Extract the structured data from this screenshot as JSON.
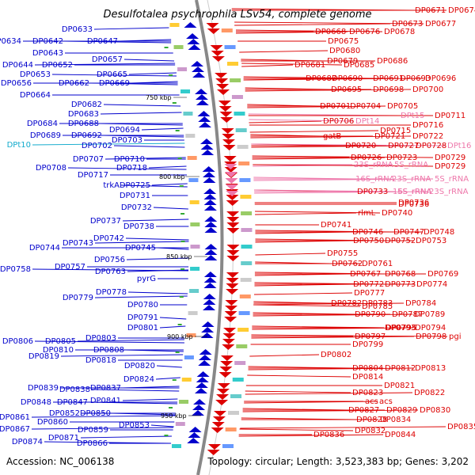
{
  "title": "Desulfotalea psychrophila LSv54, complete genome",
  "accession": "Accession: NC_006138",
  "topology": "Topology: circular; Length: 3,523,383 bp; Genes: 3,202",
  "colors": {
    "minus_strand": "#0000cc",
    "plus_strand": "#dd0000",
    "trna": "#11aacc",
    "rrna": "#ee77aa",
    "backbone": "#888888"
  },
  "scale_labels": [
    "750 kbp",
    "800 kbp",
    "850 kbp",
    "900 kbp",
    "950 kbp"
  ],
  "left_labels": [
    {
      "text": "DP0633",
      "kind": "gene"
    },
    {
      "text": "DP0634",
      "kind": "gene"
    },
    {
      "text": "DP0642",
      "kind": "gene"
    },
    {
      "text": "DP0647",
      "kind": "gene"
    },
    {
      "text": "DP0643",
      "kind": "gene"
    },
    {
      "text": "DP0657",
      "kind": "gene"
    },
    {
      "text": "DP0644",
      "kind": "gene"
    },
    {
      "text": "DP0652",
      "kind": "gene"
    },
    {
      "text": "DP0653",
      "kind": "gene"
    },
    {
      "text": "DP0665",
      "kind": "gene"
    },
    {
      "text": "DP0656",
      "kind": "gene"
    },
    {
      "text": "DP0662",
      "kind": "gene"
    },
    {
      "text": "DP0669",
      "kind": "gene"
    },
    {
      "text": "DP0664",
      "kind": "gene"
    },
    {
      "text": "DP0682",
      "kind": "gene"
    },
    {
      "text": "DP0683",
      "kind": "gene"
    },
    {
      "text": "DP0684",
      "kind": "gene"
    },
    {
      "text": "DP0688",
      "kind": "gene"
    },
    {
      "text": "DP0694",
      "kind": "gene"
    },
    {
      "text": "DP0689",
      "kind": "gene"
    },
    {
      "text": "DP0692",
      "kind": "gene"
    },
    {
      "text": "DPt10",
      "kind": "trna"
    },
    {
      "text": "DP0703",
      "kind": "gene"
    },
    {
      "text": "DP0702",
      "kind": "gene"
    },
    {
      "text": "DP0707",
      "kind": "gene"
    },
    {
      "text": "DP0710",
      "kind": "gene"
    },
    {
      "text": "DP0708",
      "kind": "gene"
    },
    {
      "text": "DP0718",
      "kind": "gene"
    },
    {
      "text": "DP0717",
      "kind": "gene"
    },
    {
      "text": "trkA",
      "kind": "gene"
    },
    {
      "text": "DP0725",
      "kind": "gene"
    },
    {
      "text": "DP0731",
      "kind": "gene"
    },
    {
      "text": "DP0732",
      "kind": "gene"
    },
    {
      "text": "DP0737",
      "kind": "gene"
    },
    {
      "text": "DP0738",
      "kind": "gene"
    },
    {
      "text": "DP0742",
      "kind": "gene"
    },
    {
      "text": "DP0743",
      "kind": "gene"
    },
    {
      "text": "DP0744",
      "kind": "gene"
    },
    {
      "text": "DP0745",
      "kind": "gene"
    },
    {
      "text": "DP0756",
      "kind": "gene"
    },
    {
      "text": "DP0757",
      "kind": "gene"
    },
    {
      "text": "DP0758",
      "kind": "gene"
    },
    {
      "text": "DP0763",
      "kind": "gene"
    },
    {
      "text": "pyrG",
      "kind": "gene"
    },
    {
      "text": "DP0778",
      "kind": "gene"
    },
    {
      "text": "DP0779",
      "kind": "gene"
    },
    {
      "text": "DP0780",
      "kind": "gene"
    },
    {
      "text": "DP0791",
      "kind": "gene"
    },
    {
      "text": "DP0801",
      "kind": "gene"
    },
    {
      "text": "DP0803",
      "kind": "gene"
    },
    {
      "text": "DP0806",
      "kind": "gene"
    },
    {
      "text": "DP0805",
      "kind": "gene"
    },
    {
      "text": "DP0810",
      "kind": "gene"
    },
    {
      "text": "DP0808",
      "kind": "gene"
    },
    {
      "text": "DP0819",
      "kind": "gene"
    },
    {
      "text": "DP0818",
      "kind": "gene"
    },
    {
      "text": "DP0820",
      "kind": "gene"
    },
    {
      "text": "DP0824",
      "kind": "gene"
    },
    {
      "text": "DP0839",
      "kind": "gene"
    },
    {
      "text": "DP0838",
      "kind": "gene"
    },
    {
      "text": "DP0837",
      "kind": "gene"
    },
    {
      "text": "DP0848",
      "kind": "gene"
    },
    {
      "text": "DP0847",
      "kind": "gene"
    },
    {
      "text": "DP0841",
      "kind": "gene"
    },
    {
      "text": "DP0852",
      "kind": "gene"
    },
    {
      "text": "DP0850",
      "kind": "gene"
    },
    {
      "text": "DP0861",
      "kind": "gene"
    },
    {
      "text": "DP0860",
      "kind": "gene"
    },
    {
      "text": "DP0853",
      "kind": "gene"
    },
    {
      "text": "DP0867",
      "kind": "gene"
    },
    {
      "text": "DP0859",
      "kind": "gene"
    },
    {
      "text": "DP0874",
      "kind": "gene"
    },
    {
      "text": "DP0871",
      "kind": "gene"
    },
    {
      "text": "DP0866",
      "kind": "gene"
    }
  ],
  "right_labels": [
    {
      "text": "DP0671",
      "kind": "gene"
    },
    {
      "text": "DP0674",
      "kind": "gene"
    },
    {
      "text": "DP0673",
      "kind": "gene"
    },
    {
      "text": "DP0677",
      "kind": "gene"
    },
    {
      "text": "DP0668",
      "kind": "gene"
    },
    {
      "text": "DP0676",
      "kind": "gene"
    },
    {
      "text": "DP0678",
      "kind": "gene"
    },
    {
      "text": "DP0675",
      "kind": "gene"
    },
    {
      "text": "DP0680",
      "kind": "gene"
    },
    {
      "text": "DP0679",
      "kind": "gene"
    },
    {
      "text": "DP0686",
      "kind": "gene"
    },
    {
      "text": "DP0681",
      "kind": "gene"
    },
    {
      "text": "DP0685",
      "kind": "gene"
    },
    {
      "text": "DP0687",
      "kind": "gene"
    },
    {
      "text": "DP0690",
      "kind": "gene"
    },
    {
      "text": "DP0691",
      "kind": "gene"
    },
    {
      "text": "DP0693",
      "kind": "gene"
    },
    {
      "text": "DP0696",
      "kind": "gene"
    },
    {
      "text": "DP0695",
      "kind": "gene"
    },
    {
      "text": "DP0698",
      "kind": "gene"
    },
    {
      "text": "DP0700",
      "kind": "gene"
    },
    {
      "text": "DP0701",
      "kind": "gene"
    },
    {
      "text": "DP0704",
      "kind": "gene"
    },
    {
      "text": "DP0705",
      "kind": "gene"
    },
    {
      "text": "DPt15",
      "kind": "rrna"
    },
    {
      "text": "DP0711",
      "kind": "gene"
    },
    {
      "text": "DP0706",
      "kind": "gene"
    },
    {
      "text": "DPt14",
      "kind": "rrna"
    },
    {
      "text": "DP0716",
      "kind": "gene"
    },
    {
      "text": "DP0715",
      "kind": "gene"
    },
    {
      "text": "gatB",
      "kind": "gene"
    },
    {
      "text": "DP0721",
      "kind": "gene"
    },
    {
      "text": "DP0722",
      "kind": "gene"
    },
    {
      "text": "DP0720",
      "kind": "gene"
    },
    {
      "text": "DP0727",
      "kind": "gene"
    },
    {
      "text": "DP0728",
      "kind": "gene"
    },
    {
      "text": "DPt16",
      "kind": "rrna"
    },
    {
      "text": "DP0726",
      "kind": "gene"
    },
    {
      "text": "DP0723",
      "kind": "gene"
    },
    {
      "text": "DP0729",
      "kind": "gene"
    },
    {
      "text": "23S_rRNA",
      "kind": "rrna"
    },
    {
      "text": "5S_rRNA",
      "kind": "rrna"
    },
    {
      "text": "16S_rRNA",
      "kind": "rrna"
    },
    {
      "text": "23S_rRNA",
      "kind": "rrna"
    },
    {
      "text": "5S_rRNA",
      "kind": "rrna"
    },
    {
      "text": "DP0733",
      "kind": "gene"
    },
    {
      "text": "16S_rRNA",
      "kind": "rrna"
    },
    {
      "text": "23S_rRNA",
      "kind": "rrna"
    },
    {
      "text": "5S_rRNA",
      "kind": "rrna"
    },
    {
      "text": "DP0736",
      "kind": "gene"
    },
    {
      "text": "rlmL",
      "kind": "gene"
    },
    {
      "text": "DP0740",
      "kind": "gene"
    },
    {
      "text": "DP0741",
      "kind": "gene"
    },
    {
      "text": "DP0746",
      "kind": "gene"
    },
    {
      "text": "DP0747",
      "kind": "gene"
    },
    {
      "text": "DP0748",
      "kind": "gene"
    },
    {
      "text": "DP0750",
      "kind": "gene"
    },
    {
      "text": "DP0752",
      "kind": "gene"
    },
    {
      "text": "DP0753",
      "kind": "gene"
    },
    {
      "text": "DP0755",
      "kind": "gene"
    },
    {
      "text": "DP0762",
      "kind": "gene"
    },
    {
      "text": "DP0761",
      "kind": "gene"
    },
    {
      "text": "DP0767",
      "kind": "gene"
    },
    {
      "text": "DP0768",
      "kind": "gene"
    },
    {
      "text": "DP0769",
      "kind": "gene"
    },
    {
      "text": "DP0772",
      "kind": "gene"
    },
    {
      "text": "DP0773",
      "kind": "gene"
    },
    {
      "text": "DP0774",
      "kind": "gene"
    },
    {
      "text": "DP0777",
      "kind": "gene"
    },
    {
      "text": "DP0782",
      "kind": "gene"
    },
    {
      "text": "DP0783",
      "kind": "gene"
    },
    {
      "text": "DP0784",
      "kind": "gene"
    },
    {
      "text": "DP0785",
      "kind": "gene"
    },
    {
      "text": "DP0787",
      "kind": "gene"
    },
    {
      "text": "DP0789",
      "kind": "gene"
    },
    {
      "text": "DP0790",
      "kind": "gene"
    },
    {
      "text": "DP0793",
      "kind": "gene"
    },
    {
      "text": "DP0794",
      "kind": "gene"
    },
    {
      "text": "DP0795",
      "kind": "gene"
    },
    {
      "text": "DP0797",
      "kind": "gene"
    },
    {
      "text": "DP0798",
      "kind": "gene"
    },
    {
      "text": "pgi",
      "kind": "gene"
    },
    {
      "text": "DP0799",
      "kind": "gene"
    },
    {
      "text": "DP0802",
      "kind": "gene"
    },
    {
      "text": "DP0804",
      "kind": "gene"
    },
    {
      "text": "DP0812",
      "kind": "gene"
    },
    {
      "text": "DP0813",
      "kind": "gene"
    },
    {
      "text": "DP0814",
      "kind": "gene"
    },
    {
      "text": "DP0821",
      "kind": "gene"
    },
    {
      "text": "DP0822",
      "kind": "gene"
    },
    {
      "text": "DP0823",
      "kind": "gene"
    },
    {
      "text": "acs",
      "kind": "gene"
    },
    {
      "text": "acs",
      "kind": "gene"
    },
    {
      "text": "DP0827",
      "kind": "gene"
    },
    {
      "text": "DP0829",
      "kind": "gene"
    },
    {
      "text": "DP0830",
      "kind": "gene"
    },
    {
      "text": "DP0828",
      "kind": "gene"
    },
    {
      "text": "DP0834",
      "kind": "gene"
    },
    {
      "text": "DP0835",
      "kind": "gene"
    },
    {
      "text": "DP0832",
      "kind": "gene"
    },
    {
      "text": "DP0836",
      "kind": "gene"
    },
    {
      "text": "DP0844",
      "kind": "gene"
    },
    {
      "text": "DP0846",
      "kind": "gene"
    },
    {
      "text": "DP0845",
      "kind": "gene"
    }
  ]
}
